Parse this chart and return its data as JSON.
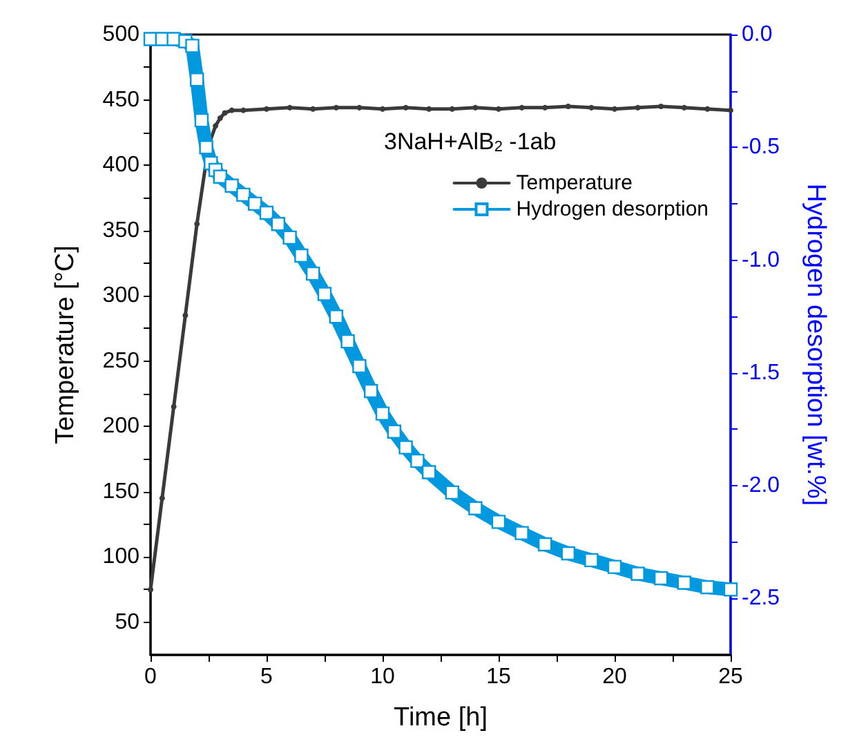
{
  "chart_data": {
    "type": "line",
    "legend_title": "3NaH+AlB$_{2}$ -1ab",
    "xlabel": "Time [h]",
    "ylabel": "Temperature [°C]",
    "y2label": "Hydrogen desorption [wt.%]",
    "xlim": [
      0,
      25
    ],
    "xticks": [
      0,
      {
        "value": 2.5,
        "label": null
      },
      5,
      {
        "value": 7.5,
        "label": null
      },
      10,
      {
        "value": 12.5,
        "label": null
      },
      15,
      {
        "value": 17.5,
        "label": null
      },
      20,
      {
        "value": 22.5,
        "label": null
      },
      25
    ],
    "ylim": [
      25,
      500
    ],
    "yticks": [
      50,
      {
        "value": 75,
        "label": null
      },
      100,
      {
        "value": 125,
        "label": null
      },
      150,
      {
        "value": 175,
        "label": null
      },
      200,
      {
        "value": 225,
        "label": null
      },
      250,
      {
        "value": 275,
        "label": null
      },
      300,
      {
        "value": 325,
        "label": null
      },
      350,
      {
        "value": 375,
        "label": null
      },
      400,
      {
        "value": 425,
        "label": null
      },
      450,
      {
        "value": 475,
        "label": null
      },
      500
    ],
    "y2lim": [
      -2.75,
      0
    ],
    "y2ticks": [
      {
        "value": -2.5,
        "label": "-2.5"
      },
      {
        "value": -2.25,
        "label": null
      },
      {
        "value": -2,
        "label": "-2.0"
      },
      {
        "value": -1.75,
        "label": null
      },
      {
        "value": -1.5,
        "label": "-1.5"
      },
      {
        "value": -1.25,
        "label": null
      },
      {
        "value": -1,
        "label": "-1.0"
      },
      {
        "value": -0.75,
        "label": null
      },
      {
        "value": -0.5,
        "label": "-0.5"
      },
      {
        "value": -0.25,
        "label": null
      },
      {
        "value": 0,
        "label": "0.0"
      }
    ],
    "legend": "top right",
    "grid": false,
    "series": [
      {
        "name": "Temperature",
        "color": "#3a3a3a",
        "marker": "circle",
        "x": [
          0,
          0.5,
          1,
          1.5,
          2,
          2.5,
          2.8,
          3,
          3.2,
          3.5,
          4,
          5,
          6,
          7,
          8,
          9,
          10,
          11,
          12,
          13,
          14,
          15,
          16,
          17,
          18,
          19,
          20,
          21,
          22,
          23,
          24,
          25
        ],
        "values": [
          75,
          145,
          215,
          285,
          355,
          415,
          430,
          436,
          440,
          442,
          442,
          443,
          444,
          443,
          444,
          444,
          443,
          444,
          443,
          443,
          444,
          443,
          444,
          444,
          445,
          444,
          443,
          444,
          445,
          444,
          443,
          442
        ]
      },
      {
        "name": "Hydrogen desorption",
        "color": "#0099e0",
        "marker": "square",
        "axis": "y2",
        "x": [
          0,
          0.5,
          1,
          1.5,
          1.8,
          2,
          2.2,
          2.4,
          2.6,
          2.8,
          3,
          3.5,
          4,
          4.5,
          5,
          5.5,
          6,
          6.5,
          7,
          7.5,
          8,
          8.5,
          9,
          9.5,
          10,
          10.5,
          11,
          11.5,
          12,
          13,
          14,
          15,
          16,
          17,
          18,
          19,
          20,
          21,
          22,
          23,
          24,
          25
        ],
        "values": [
          -0.02,
          -0.02,
          -0.02,
          -0.03,
          -0.05,
          -0.2,
          -0.38,
          -0.5,
          -0.57,
          -0.6,
          -0.63,
          -0.67,
          -0.71,
          -0.75,
          -0.79,
          -0.84,
          -0.9,
          -0.98,
          -1.06,
          -1.15,
          -1.25,
          -1.36,
          -1.47,
          -1.58,
          -1.68,
          -1.76,
          -1.83,
          -1.89,
          -1.94,
          -2.03,
          -2.1,
          -2.16,
          -2.21,
          -2.26,
          -2.3,
          -2.33,
          -2.36,
          -2.39,
          -2.41,
          -2.43,
          -2.45,
          -2.46
        ]
      }
    ]
  }
}
